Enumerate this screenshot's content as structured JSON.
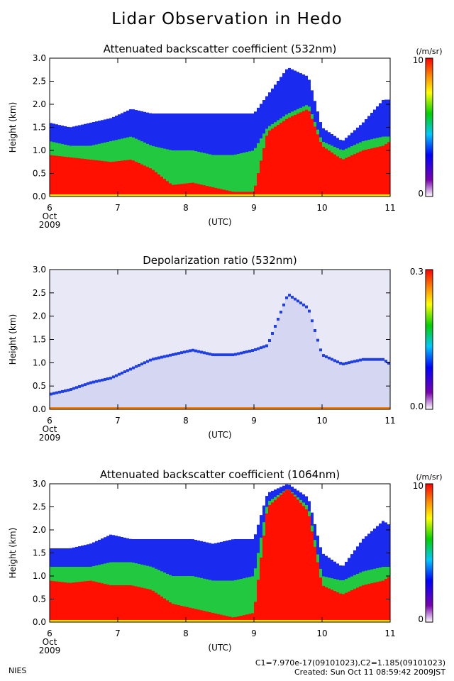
{
  "title": "Lidar Observation in Hedo",
  "footer": {
    "left": "NIES",
    "calibration": "C1=7.970e-17(09101023),C2=1.185(09101023)",
    "created": "Created: Sun Oct 11 08:59:42 2009JST"
  },
  "chart_data": [
    {
      "type": "heatmap",
      "title": "Attenuated backscatter coefficient (532nm)",
      "ylabel": "Height (km)",
      "xlabel": "(UTC)",
      "x_ticks": [
        "6",
        "7",
        "8",
        "9",
        "10",
        "11"
      ],
      "x_sub": [
        "Oct",
        "2009"
      ],
      "y_ticks": [
        "0.0",
        "0.5",
        "1.0",
        "1.5",
        "2.0",
        "2.5",
        "3.0"
      ],
      "xlim": [
        6,
        11
      ],
      "ylim": [
        0,
        3
      ],
      "colorbar": {
        "max_label": "10",
        "min_label": "0",
        "unit": "(/m/sr)"
      },
      "profile": {
        "day": [
          6.0,
          6.3,
          6.6,
          6.9,
          7.2,
          7.5,
          7.8,
          8.1,
          8.4,
          8.7,
          9.0,
          9.2,
          9.5,
          9.8,
          10.0,
          10.3,
          10.6,
          10.9,
          11.0
        ],
        "red_top_km": [
          0.9,
          0.85,
          0.8,
          0.75,
          0.8,
          0.6,
          0.25,
          0.3,
          0.2,
          0.1,
          0.1,
          1.4,
          1.7,
          1.9,
          1.1,
          0.8,
          1.0,
          1.1,
          1.2
        ],
        "green_top_km": [
          1.2,
          1.1,
          1.1,
          1.2,
          1.3,
          1.1,
          1.0,
          1.0,
          0.9,
          0.9,
          1.0,
          1.5,
          1.8,
          2.0,
          1.2,
          1.0,
          1.2,
          1.3,
          1.3
        ],
        "blue_top_km": [
          1.6,
          1.5,
          1.6,
          1.7,
          1.9,
          1.8,
          1.8,
          1.8,
          1.8,
          1.8,
          1.8,
          2.2,
          2.8,
          2.6,
          1.5,
          1.2,
          1.6,
          2.1,
          2.1
        ]
      }
    },
    {
      "type": "heatmap",
      "title": "Depolarization ratio (532nm)",
      "ylabel": "Height (km)",
      "xlabel": "(UTC)",
      "x_ticks": [
        "6",
        "7",
        "8",
        "9",
        "10",
        "11"
      ],
      "x_sub": [
        "Oct",
        "2009"
      ],
      "y_ticks": [
        "0.0",
        "0.5",
        "1.0",
        "1.5",
        "2.0",
        "2.5",
        "3.0"
      ],
      "xlim": [
        6,
        11
      ],
      "ylim": [
        0,
        3
      ],
      "colorbar": {
        "max_label": "0.3",
        "min_label": "0.0",
        "unit": ""
      },
      "profile": {
        "day": [
          6.0,
          6.3,
          6.6,
          6.9,
          7.2,
          7.5,
          7.8,
          8.1,
          8.4,
          8.7,
          9.0,
          9.2,
          9.5,
          9.8,
          10.0,
          10.3,
          10.6,
          10.9,
          11.0
        ],
        "red_top_km": [
          0,
          0,
          0,
          0,
          0,
          0,
          0,
          0,
          0,
          0,
          0,
          0,
          0,
          0,
          0,
          0,
          0,
          0,
          0
        ],
        "green_top_km": [
          0,
          0,
          0,
          0,
          0,
          0,
          0,
          0,
          0,
          0,
          0,
          0,
          0,
          0,
          0,
          0,
          0,
          0,
          0
        ],
        "blue_top_km": [
          0.35,
          0.45,
          0.6,
          0.7,
          0.9,
          1.1,
          1.2,
          1.3,
          1.2,
          1.2,
          1.3,
          1.4,
          2.5,
          2.2,
          1.2,
          1.0,
          1.1,
          1.1,
          1.0
        ]
      }
    },
    {
      "type": "heatmap",
      "title": "Attenuated backscatter coefficient (1064nm)",
      "ylabel": "Height (km)",
      "xlabel": "(UTC)",
      "x_ticks": [
        "6",
        "7",
        "8",
        "9",
        "10",
        "11"
      ],
      "x_sub": [
        "Oct",
        "2009"
      ],
      "y_ticks": [
        "0.0",
        "0.5",
        "1.0",
        "1.5",
        "2.0",
        "2.5",
        "3.0"
      ],
      "xlim": [
        6,
        11
      ],
      "ylim": [
        0,
        3
      ],
      "colorbar": {
        "max_label": "10",
        "min_label": "0",
        "unit": "(/m/sr)"
      },
      "profile": {
        "day": [
          6.0,
          6.3,
          6.6,
          6.9,
          7.2,
          7.5,
          7.8,
          8.1,
          8.4,
          8.7,
          9.0,
          9.2,
          9.5,
          9.8,
          10.0,
          10.3,
          10.6,
          10.9,
          11.0
        ],
        "red_top_km": [
          0.9,
          0.85,
          0.9,
          0.8,
          0.8,
          0.7,
          0.4,
          0.3,
          0.2,
          0.1,
          0.2,
          2.5,
          2.9,
          2.4,
          0.8,
          0.6,
          0.8,
          0.9,
          1.0
        ],
        "green_top_km": [
          1.2,
          1.2,
          1.2,
          1.3,
          1.3,
          1.2,
          1.0,
          1.0,
          0.9,
          0.9,
          1.0,
          2.6,
          2.9,
          2.5,
          1.0,
          0.9,
          1.1,
          1.2,
          1.2
        ],
        "blue_top_km": [
          1.6,
          1.6,
          1.7,
          1.9,
          1.8,
          1.8,
          1.8,
          1.8,
          1.7,
          1.8,
          1.8,
          2.8,
          3.0,
          2.7,
          1.5,
          1.2,
          1.8,
          2.2,
          2.1
        ]
      }
    }
  ]
}
